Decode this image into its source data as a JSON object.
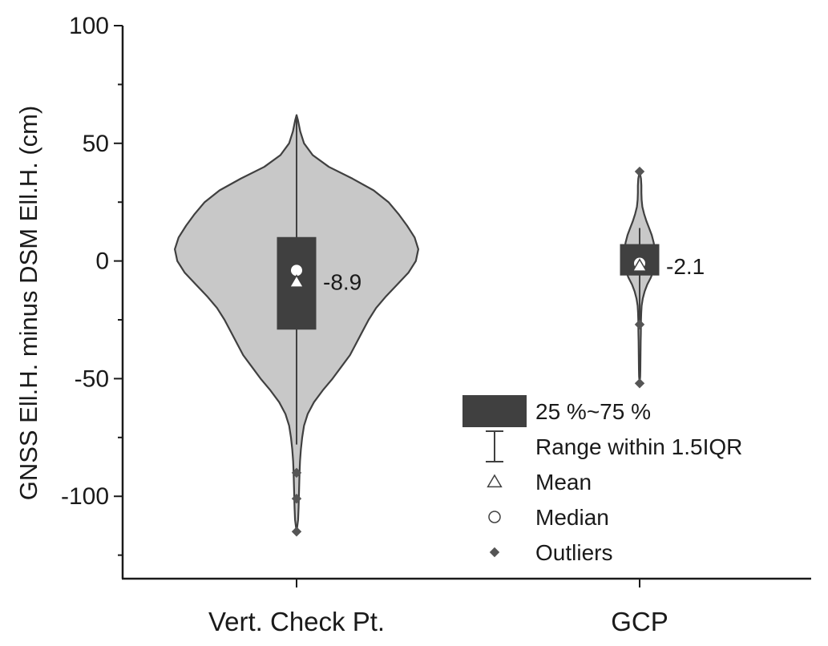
{
  "chart_data": {
    "type": "violin",
    "title": "",
    "xlabel": "",
    "ylabel": "GNSS Ell.H. minus DSM Ell.H. (cm)",
    "ylim": [
      -135,
      100
    ],
    "yticks": [
      {
        "value": 100,
        "label": "100"
      },
      {
        "value": 50,
        "label": "50"
      },
      {
        "value": 0,
        "label": "0"
      },
      {
        "value": -50,
        "label": "-50"
      },
      {
        "value": -100,
        "label": "-100"
      }
    ],
    "categories": [
      "Vert. Check Pt.",
      "GCP"
    ],
    "series": [
      {
        "category": "Vert. Check Pt.",
        "q1": -29,
        "q3": 10,
        "whisker_low": -78,
        "whisker_high": 62,
        "median": -4,
        "mean": -8.9,
        "mean_label": "-8.9",
        "outliers": [
          -90,
          -101,
          -115
        ],
        "density": [
          [
            62,
            0.0
          ],
          [
            60,
            0.01
          ],
          [
            55,
            0.03
          ],
          [
            50,
            0.06
          ],
          [
            45,
            0.13
          ],
          [
            40,
            0.26
          ],
          [
            35,
            0.45
          ],
          [
            30,
            0.62
          ],
          [
            25,
            0.74
          ],
          [
            20,
            0.82
          ],
          [
            15,
            0.89
          ],
          [
            10,
            0.95
          ],
          [
            5,
            0.98
          ],
          [
            0,
            0.96
          ],
          [
            -5,
            0.9
          ],
          [
            -10,
            0.81
          ],
          [
            -15,
            0.72
          ],
          [
            -20,
            0.64
          ],
          [
            -25,
            0.58
          ],
          [
            -30,
            0.53
          ],
          [
            -35,
            0.48
          ],
          [
            -40,
            0.43
          ],
          [
            -45,
            0.36
          ],
          [
            -50,
            0.29
          ],
          [
            -55,
            0.21
          ],
          [
            -60,
            0.14
          ],
          [
            -65,
            0.09
          ],
          [
            -70,
            0.06
          ],
          [
            -75,
            0.045
          ],
          [
            -80,
            0.035
          ],
          [
            -85,
            0.028
          ],
          [
            -90,
            0.024
          ],
          [
            -95,
            0.021
          ],
          [
            -100,
            0.019
          ],
          [
            -105,
            0.016
          ],
          [
            -110,
            0.012
          ],
          [
            -115,
            0.0
          ]
        ]
      },
      {
        "category": "GCP",
        "q1": -6,
        "q3": 7,
        "whisker_low": -26,
        "whisker_high": 14,
        "median": -1,
        "mean": -2.1,
        "mean_label": "-2.1",
        "outliers": [
          38,
          -27,
          -52
        ],
        "density": [
          [
            38,
            0.0
          ],
          [
            35,
            0.03
          ],
          [
            32,
            0.04
          ],
          [
            29,
            0.04
          ],
          [
            26,
            0.045
          ],
          [
            23,
            0.06
          ],
          [
            20,
            0.1
          ],
          [
            17,
            0.15
          ],
          [
            14,
            0.21
          ],
          [
            11,
            0.27
          ],
          [
            8,
            0.31
          ],
          [
            5,
            0.34
          ],
          [
            2,
            0.35
          ],
          [
            -1,
            0.34
          ],
          [
            -4,
            0.31
          ],
          [
            -7,
            0.25
          ],
          [
            -10,
            0.17
          ],
          [
            -13,
            0.11
          ],
          [
            -16,
            0.07
          ],
          [
            -19,
            0.045
          ],
          [
            -22,
            0.035
          ],
          [
            -25,
            0.03
          ],
          [
            -28,
            0.028
          ],
          [
            -31,
            0.026
          ],
          [
            -34,
            0.024
          ],
          [
            -37,
            0.022
          ],
          [
            -40,
            0.02
          ],
          [
            -43,
            0.018
          ],
          [
            -46,
            0.016
          ],
          [
            -49,
            0.012
          ],
          [
            -52,
            0.0
          ]
        ]
      }
    ],
    "legend": {
      "position": "bottom-right",
      "items": [
        {
          "symbol": "box",
          "label": "25 %~75 %"
        },
        {
          "symbol": "whisker",
          "label": "Range within 1.5IQR"
        },
        {
          "symbol": "triangle",
          "label": "Mean"
        },
        {
          "symbol": "circle",
          "label": "Median"
        },
        {
          "symbol": "diamond",
          "label": "Outliers"
        }
      ]
    },
    "colors": {
      "violin_fill": "#c8c8c8",
      "violin_stroke": "#404040",
      "box_fill": "#404040",
      "marker_fill": "#ffffff",
      "outlier_fill": "#555555",
      "axis": "#1a1a1a"
    },
    "grid": false
  }
}
